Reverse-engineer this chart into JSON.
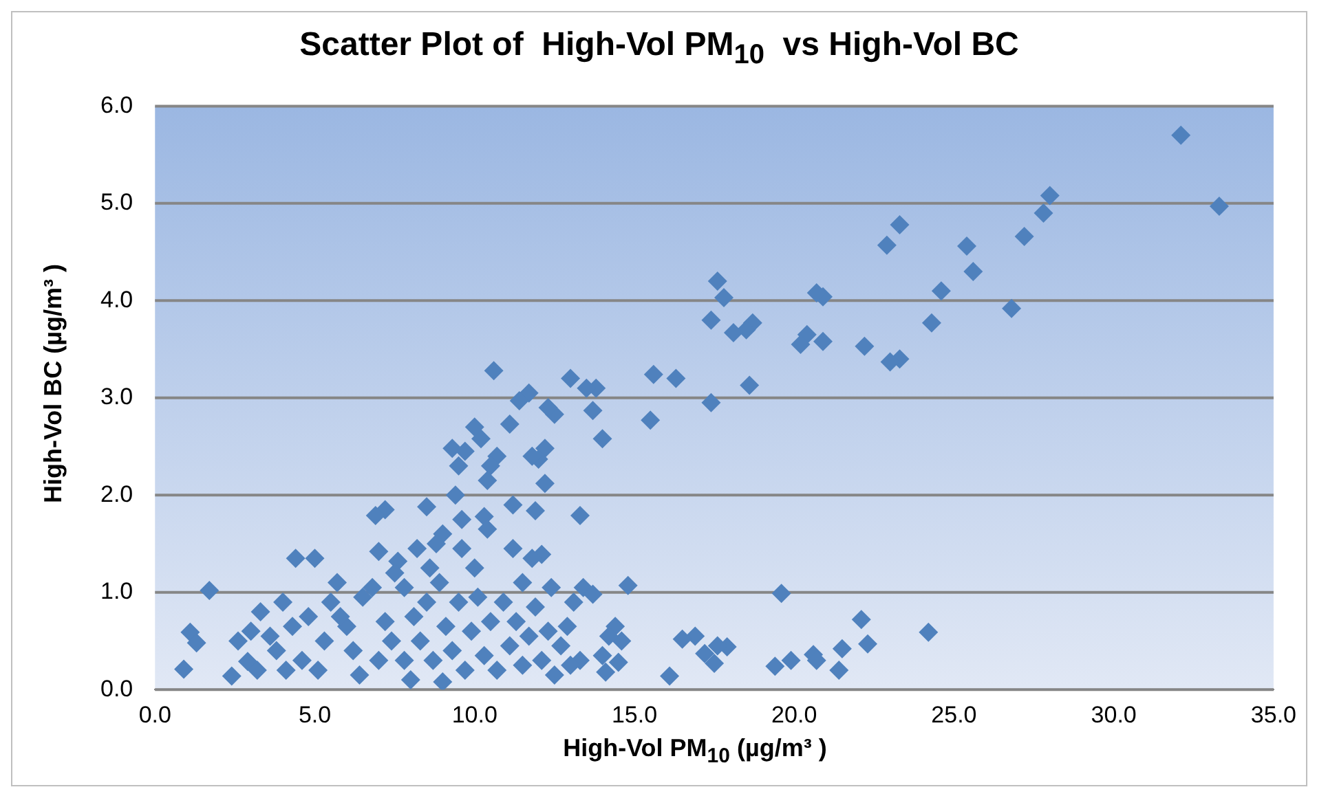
{
  "chart_data": {
    "type": "scatter",
    "title": "Scatter Plot of  High-Vol PM$_{10}$  vs High-Vol BC",
    "xlabel": "High-Vol PM$_{10}$ (µg/m³ )",
    "ylabel": "High-Vol BC (µg/m³ )",
    "series": [
      {
        "color": "#4f81bd",
        "x": [
          32.1,
          33.3,
          28.0,
          27.8,
          27.2,
          26.8,
          25.6,
          25.4,
          24.6,
          24.3,
          23.3,
          22.9,
          23.3,
          23.0,
          22.2,
          20.9,
          20.7,
          20.9,
          20.4,
          20.2,
          18.7,
          18.5,
          18.1,
          18.6,
          17.8,
          17.6,
          17.4,
          17.4,
          16.3,
          15.6,
          15.5,
          14.0,
          13.8,
          13.5,
          13.7,
          13.0,
          13.3,
          14.8,
          13.4,
          13.7,
          12.5,
          12.3,
          12.2,
          12.2,
          12.0,
          11.8,
          11.9,
          11.7,
          11.4,
          11.1,
          11.2,
          10.6,
          10.7,
          10.5,
          10.4,
          10.2,
          10.0,
          9.7,
          9.3,
          9.5,
          9.4,
          9.6,
          10.3,
          10.4,
          10.0,
          9.0,
          8.5,
          7.2,
          6.9,
          8.8,
          8.2,
          7.0,
          7.6,
          7.8,
          8.6,
          9.6,
          11.2,
          11.5,
          12.1,
          11.8,
          12.4,
          19.6,
          22.1,
          24.2,
          22.3,
          21.5,
          21.4,
          20.6,
          20.7,
          19.9,
          19.4,
          17.9,
          17.6,
          17.5,
          17.2,
          16.9,
          16.5,
          16.1,
          14.6,
          14.4,
          14.2,
          14.0,
          14.1,
          14.5,
          13.3,
          12.9,
          13.0,
          0.9,
          1.1,
          1.3,
          1.7,
          2.4,
          2.6,
          2.9,
          3.2,
          3.3,
          3.6,
          3.8,
          4.0,
          4.1,
          4.3,
          4.4,
          4.6,
          4.8,
          5.0,
          5.1,
          5.3,
          5.5,
          5.7,
          6.0,
          6.2,
          6.5,
          6.8,
          7.0,
          7.2,
          7.4,
          7.5,
          7.8,
          8.0,
          8.1,
          8.3,
          8.5,
          8.7,
          8.9,
          9.0,
          9.1,
          9.3,
          9.5,
          9.7,
          9.9,
          10.1,
          10.3,
          10.5,
          10.7,
          10.9,
          11.1,
          11.3,
          11.5,
          11.7,
          11.9,
          12.1,
          12.3,
          12.5,
          12.7,
          13.1,
          6.4,
          5.8,
          3.0
        ],
        "values": [
          5.7,
          4.97,
          5.08,
          4.9,
          4.66,
          3.92,
          4.3,
          4.56,
          4.1,
          3.77,
          4.78,
          4.57,
          3.4,
          3.37,
          3.53,
          4.04,
          4.08,
          3.58,
          3.65,
          3.55,
          3.77,
          3.7,
          3.67,
          3.13,
          4.03,
          4.2,
          3.8,
          2.95,
          3.2,
          3.24,
          2.77,
          2.58,
          3.1,
          3.1,
          2.87,
          3.2,
          1.79,
          1.07,
          1.05,
          0.98,
          2.83,
          2.9,
          2.48,
          2.12,
          2.37,
          2.4,
          1.84,
          3.05,
          2.97,
          2.73,
          1.9,
          3.28,
          2.4,
          2.3,
          2.15,
          2.58,
          2.7,
          2.45,
          2.48,
          2.3,
          2.0,
          1.75,
          1.78,
          1.65,
          1.25,
          1.6,
          1.88,
          1.85,
          1.79,
          1.5,
          1.45,
          1.42,
          1.32,
          1.05,
          1.25,
          1.45,
          1.45,
          1.1,
          1.39,
          1.35,
          1.05,
          0.99,
          0.72,
          0.59,
          0.47,
          0.42,
          0.2,
          0.36,
          0.3,
          0.3,
          0.24,
          0.44,
          0.45,
          0.27,
          0.37,
          0.55,
          0.52,
          0.14,
          0.5,
          0.65,
          0.55,
          0.35,
          0.18,
          0.28,
          0.3,
          0.65,
          0.25,
          0.21,
          0.59,
          0.48,
          1.02,
          0.14,
          0.5,
          0.29,
          0.2,
          0.8,
          0.55,
          0.4,
          0.9,
          0.2,
          0.65,
          1.35,
          0.3,
          0.75,
          1.35,
          0.2,
          0.5,
          0.9,
          1.1,
          0.65,
          0.4,
          0.95,
          1.05,
          0.3,
          0.7,
          0.5,
          1.2,
          0.3,
          0.1,
          0.75,
          0.5,
          0.9,
          0.3,
          1.1,
          0.08,
          0.65,
          0.4,
          0.9,
          0.2,
          0.6,
          0.95,
          0.35,
          0.7,
          0.2,
          0.9,
          0.45,
          0.7,
          0.25,
          0.55,
          0.85,
          0.3,
          0.6,
          0.15,
          0.45,
          0.9,
          0.15,
          0.75,
          0.6
        ]
      }
    ],
    "xlim": [
      0,
      35
    ],
    "xticks": [
      {
        "value": 0,
        "label": "0.0"
      },
      {
        "value": 5,
        "label": "5.0"
      },
      {
        "value": 10,
        "label": "10.0"
      },
      {
        "value": 15,
        "label": "15.0"
      },
      {
        "value": 20,
        "label": "20.0"
      },
      {
        "value": 25,
        "label": "25.0"
      },
      {
        "value": 30,
        "label": "30.0"
      },
      {
        "value": 35,
        "label": "35.0"
      }
    ],
    "ylim": [
      0,
      6
    ],
    "yticks": [
      {
        "value": 0,
        "label": "0.0"
      },
      {
        "value": 1,
        "label": "1.0"
      },
      {
        "value": 2,
        "label": "2.0"
      },
      {
        "value": 3,
        "label": "3.0"
      },
      {
        "value": 4,
        "label": "4.0"
      },
      {
        "value": 5,
        "label": "5.0"
      },
      {
        "value": 6,
        "label": "6.0"
      }
    ],
    "grid": "y",
    "marker": "diamond",
    "legend": false
  }
}
